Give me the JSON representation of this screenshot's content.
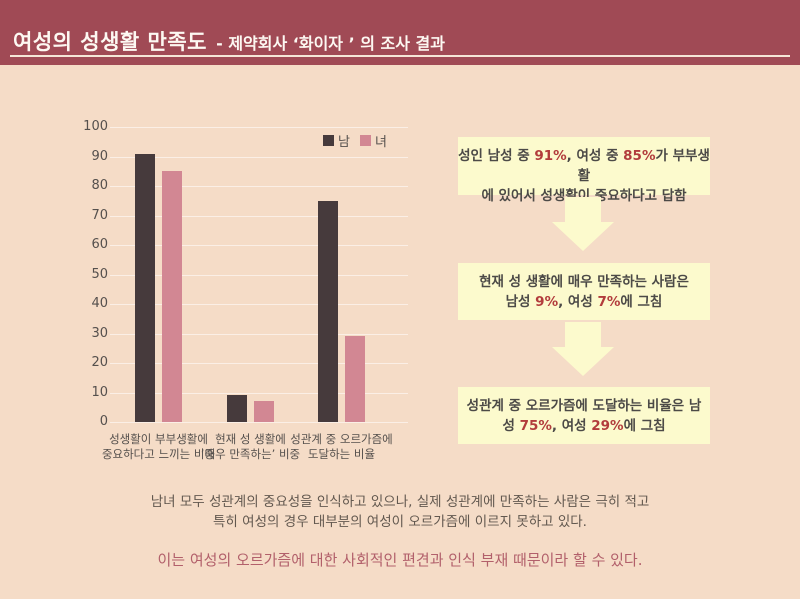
{
  "header": {
    "title_main": "여성의 성생활 만족도",
    "title_sub": "- 제약회사 ‘화이자 ’ 의 조사 결과"
  },
  "chart_data": {
    "type": "bar",
    "title": "",
    "xlabel": "",
    "ylabel": "",
    "ylim": [
      0,
      100
    ],
    "yticks": [
      0,
      10,
      20,
      30,
      40,
      50,
      60,
      70,
      80,
      90,
      100
    ],
    "grid": true,
    "legend_position": "top-right",
    "categories": [
      "성생활이 부부생활에\n중요하다고 느끼는 비중",
      "현재 성 생활에\n‘매우 만족하는’ 비중",
      "성관계 중 오르가즘에\n도달하는 비율"
    ],
    "series": [
      {
        "name": "남",
        "color": "#463a3c",
        "values": [
          91,
          9,
          75
        ]
      },
      {
        "name": "녀",
        "color": "#d28793",
        "values": [
          85,
          7,
          29
        ]
      }
    ]
  },
  "flow": {
    "boxes": [
      {
        "lines": [
          [
            {
              "t": "성인 남성 중 "
            },
            {
              "t": "91%",
              "hl": true
            },
            {
              "t": ", 여성 중 "
            },
            {
              "t": "85%",
              "hl": true
            },
            {
              "t": "가 부부생활"
            }
          ],
          [
            {
              "t": "에 있어서 성생활이 중요하다고 답함"
            }
          ]
        ]
      },
      {
        "lines": [
          [
            {
              "t": "현재 성 생활에 매우 만족하는 사람은"
            }
          ],
          [
            {
              "t": "남성 "
            },
            {
              "t": "9%",
              "hl": true
            },
            {
              "t": ", 여성 "
            },
            {
              "t": "7%",
              "hl": true
            },
            {
              "t": "에 그침"
            }
          ]
        ]
      },
      {
        "lines": [
          [
            {
              "t": "성관계 중 오르가즘에 도달하는 비율은 남"
            }
          ],
          [
            {
              "t": "성 "
            },
            {
              "t": "75%",
              "hl": true
            },
            {
              "t": ", 여성 "
            },
            {
              "t": "29%",
              "hl": true
            },
            {
              "t": "에 그침"
            }
          ]
        ]
      }
    ]
  },
  "summary": {
    "line1": "남녀 모두 성관계의 중요성을 인식하고 있으나, 실제 성관계에 만족하는 사람은 극히 적고",
    "line2": "특히 여성의 경우 대부분의 여성이 오르가즘에 이르지 못하고 있다.",
    "conclusion": "이는 여성의 오르가즘에 대한 사회적인 편견과 인식 부재 때문이라 할 수 있다."
  },
  "colors": {
    "header_bg": "#a04a55",
    "page_bg": "#f5dcc7",
    "header_underline": "#f5e7d8",
    "bar_male": "#463a3c",
    "bar_female": "#d28793",
    "axis_text": "#55504d",
    "flow_box_bg": "#fcfacd",
    "flow_text": "#4c4a47",
    "highlight": "#b23c3c",
    "summary_text": "#62584f",
    "conclusion_text": "#b2606b"
  }
}
